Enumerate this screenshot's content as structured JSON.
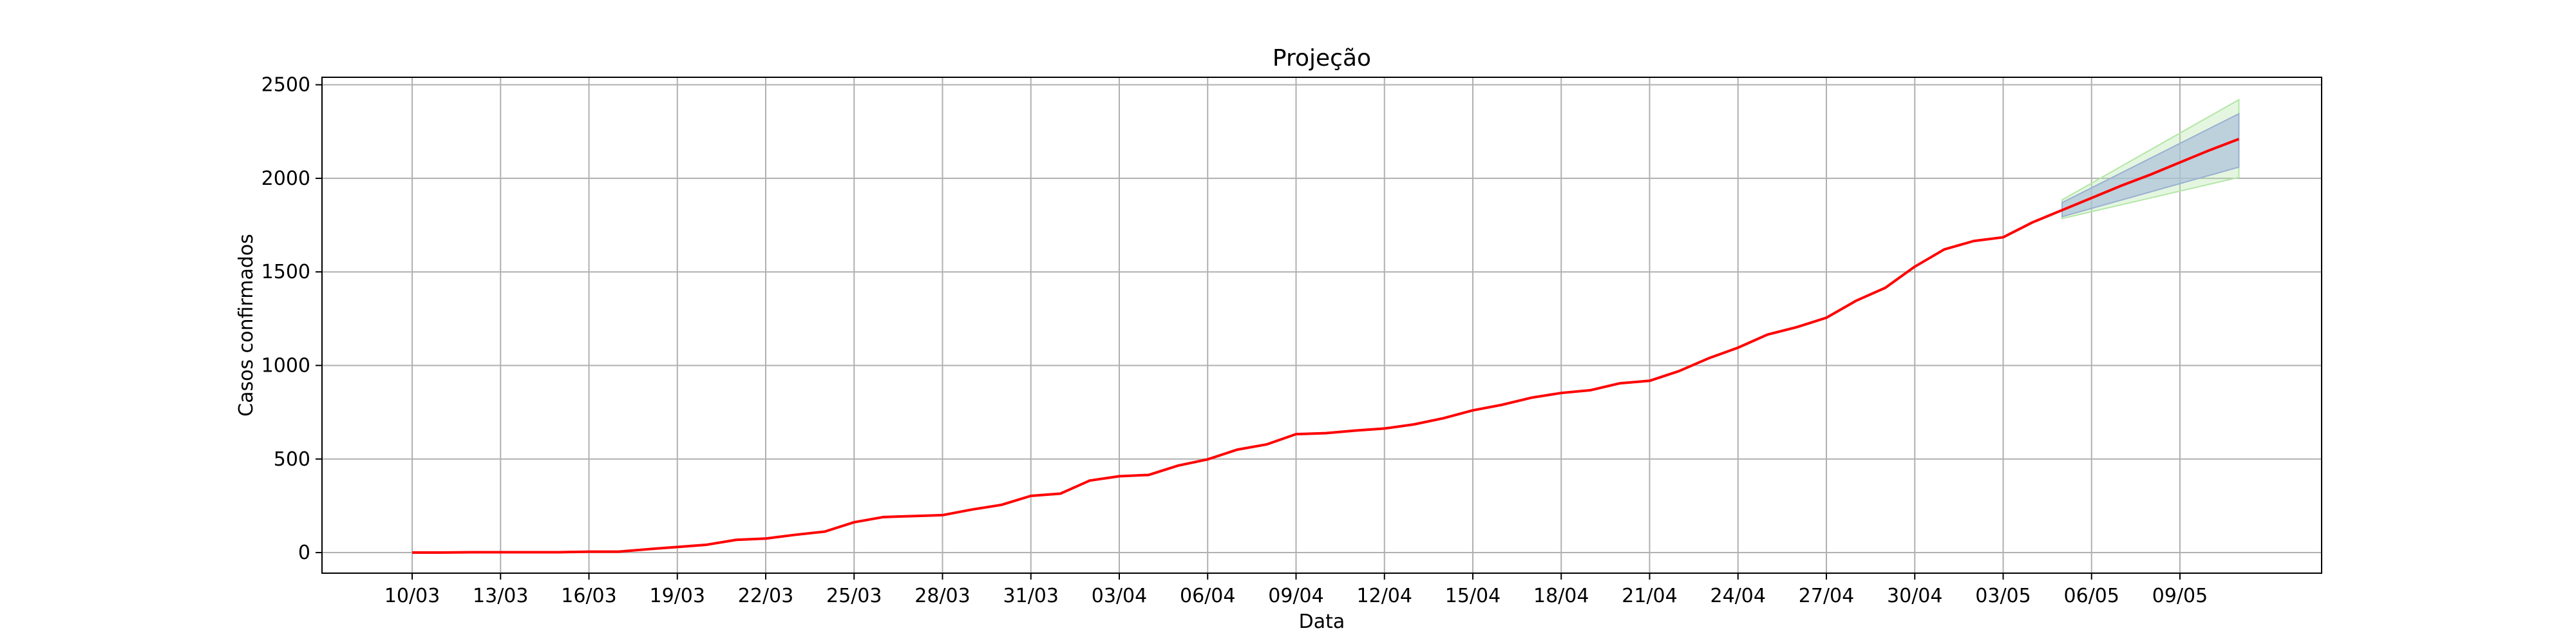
{
  "chart_data": {
    "type": "line",
    "title": "Projeção",
    "xlabel": "Data",
    "ylabel": "Casos confirmados",
    "grid": true,
    "ylim": [
      -110,
      2540
    ],
    "yticks": [
      0,
      500,
      1000,
      1500,
      2000,
      2500
    ],
    "xticks": [
      "10/03",
      "13/03",
      "16/03",
      "19/03",
      "22/03",
      "25/03",
      "28/03",
      "31/03",
      "03/04",
      "06/04",
      "09/04",
      "12/04",
      "15/04",
      "18/04",
      "21/04",
      "24/04",
      "27/04",
      "30/04",
      "03/05",
      "06/05",
      "09/05"
    ],
    "colors": {
      "line": "#ff0000",
      "band_outer": "#b3e6a6",
      "band_inner": "#a8bddb",
      "grid": "#b0b0b0"
    },
    "series": [
      {
        "x": [
          "10/03",
          "11/03",
          "12/03",
          "13/03",
          "14/03",
          "15/03",
          "16/03",
          "17/03",
          "18/03",
          "19/03",
          "20/03",
          "21/03",
          "22/03",
          "23/03",
          "24/03",
          "25/03",
          "26/03",
          "27/03",
          "28/03",
          "29/03",
          "30/03",
          "31/03",
          "01/04",
          "02/04",
          "03/04",
          "04/04",
          "05/04",
          "06/04",
          "07/04",
          "08/04",
          "09/04",
          "10/04",
          "11/04",
          "12/04",
          "13/04",
          "14/04",
          "15/04",
          "16/04",
          "17/04",
          "18/04",
          "19/04",
          "20/04",
          "21/04",
          "22/04",
          "23/04",
          "24/04",
          "25/04",
          "26/04",
          "27/04",
          "28/04",
          "29/04",
          "30/04",
          "01/05",
          "02/05",
          "03/05",
          "04/05",
          "05/05",
          "06/05",
          "07/05",
          "08/05",
          "09/05",
          "10/05",
          "11/05"
        ],
        "values": [
          0,
          0,
          2,
          2,
          2,
          2,
          5,
          5,
          18,
          30,
          42,
          68,
          75,
          95,
          112,
          162,
          190,
          195,
          200,
          230,
          255,
          303,
          315,
          385,
          408,
          415,
          465,
          498,
          550,
          578,
          633,
          638,
          652,
          663,
          685,
          718,
          760,
          790,
          828,
          853,
          868,
          905,
          918,
          970,
          1038,
          1095,
          1165,
          1205,
          1255,
          1345,
          1415,
          1528,
          1620,
          1665,
          1685,
          1765,
          1830,
          1895,
          1960,
          2020,
          2085,
          2150,
          2210
        ]
      }
    ],
    "bands": [
      {
        "x_start": "05/05",
        "x_end": "11/05",
        "start": [
          1785,
          1885
        ],
        "end": [
          2005,
          2420
        ]
      },
      {
        "x_start": "05/05",
        "x_end": "11/05",
        "start": [
          1795,
          1870
        ],
        "end": [
          2060,
          2345
        ]
      }
    ]
  }
}
